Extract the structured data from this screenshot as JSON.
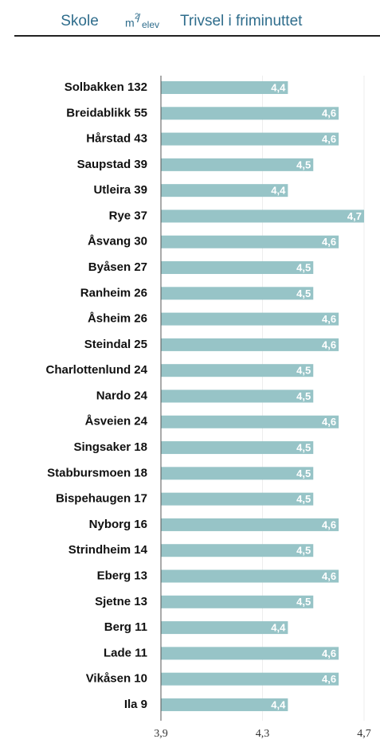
{
  "chart_data": {
    "type": "bar",
    "orientation": "horizontal",
    "column_headers": [
      "Skole",
      "Trivsel i friminuttet"
    ],
    "unit_header": {
      "base": "m",
      "sup": "2",
      "sub": "elev"
    },
    "categories": [
      "Solbakken 132",
      "Breidablikk 55",
      "Hårstad 43",
      "Saupstad 39",
      "Utleira 39",
      "Rye 37",
      "Åsvang 30",
      "Byåsen 27",
      "Ranheim 26",
      "Åsheim 26",
      "Steindal 25",
      "Charlottenlund 24",
      "Nardo 24",
      "Åsveien 24",
      "Singsaker 18",
      "Stabbursmoen 18",
      "Bispehaugen 17",
      "Nyborg 16",
      "Strindheim 14",
      "Eberg 13",
      "Sjetne 13",
      "Berg 11",
      "Lade 11",
      "Vikåsen 10",
      "Ila 9"
    ],
    "values": [
      4.4,
      4.6,
      4.6,
      4.5,
      4.4,
      4.7,
      4.6,
      4.5,
      4.5,
      4.6,
      4.6,
      4.5,
      4.5,
      4.6,
      4.5,
      4.5,
      4.5,
      4.6,
      4.5,
      4.6,
      4.5,
      4.4,
      4.6,
      4.6,
      4.4
    ],
    "value_labels": [
      "4,4",
      "4,6",
      "4,6",
      "4,5",
      "4,4",
      "4,7",
      "4,6",
      "4,5",
      "4,5",
      "4,6",
      "4,6",
      "4,5",
      "4,5",
      "4,6",
      "4,5",
      "4,5",
      "4,5",
      "4,6",
      "4,5",
      "4,6",
      "4,5",
      "4,4",
      "4,6",
      "4,6",
      "4,4"
    ],
    "color": "#97c4c7",
    "xlim": [
      3.9,
      4.7
    ],
    "xticks": [
      {
        "value": 3.9,
        "label": "3,9"
      },
      {
        "value": 4.3,
        "label": "4,3"
      },
      {
        "value": 4.7,
        "label": "4,7"
      }
    ],
    "grid": true
  }
}
